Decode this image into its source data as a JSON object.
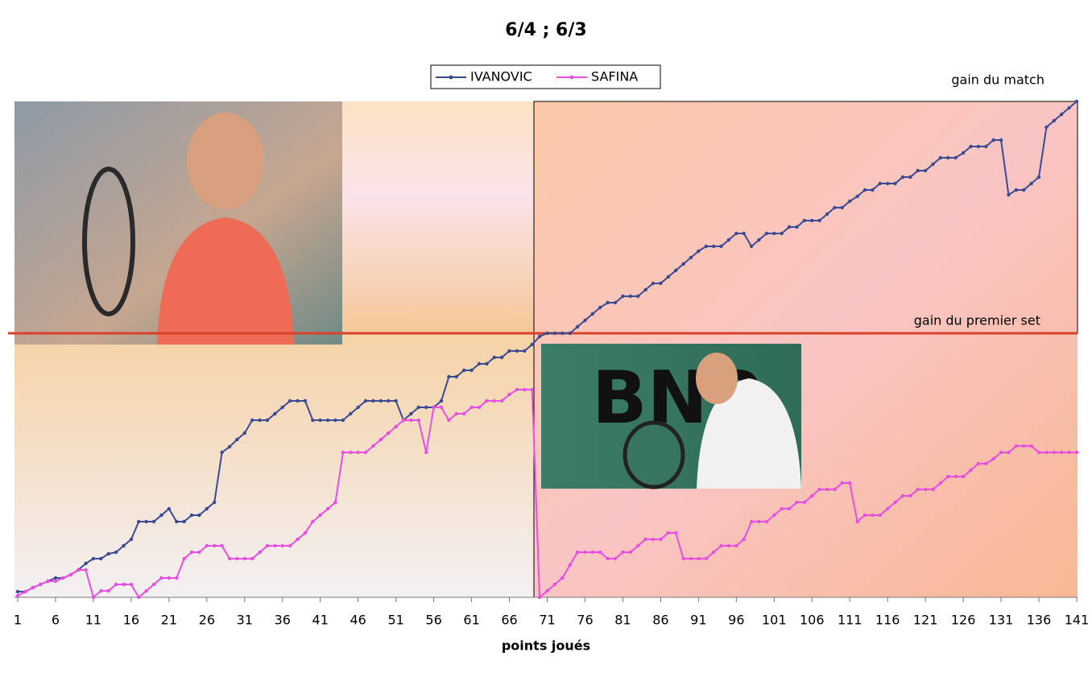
{
  "chart_data": {
    "type": "line",
    "title": "6/4 ; 6/3",
    "x_label": "points joués",
    "x": [
      1,
      2,
      3,
      4,
      5,
      6,
      7,
      8,
      9,
      10,
      11,
      12,
      13,
      14,
      15,
      16,
      17,
      18,
      19,
      20,
      21,
      22,
      23,
      24,
      25,
      26,
      27,
      28,
      29,
      30,
      31,
      32,
      33,
      34,
      35,
      36,
      37,
      38,
      39,
      40,
      41,
      42,
      43,
      44,
      45,
      46,
      47,
      48,
      49,
      50,
      51,
      52,
      53,
      54,
      55,
      56,
      57,
      58,
      59,
      60,
      61,
      62,
      63,
      64,
      65,
      66,
      67,
      68,
      69,
      70,
      71,
      72,
      73,
      74,
      75,
      76,
      77,
      78,
      79,
      80,
      81,
      82,
      83,
      84,
      85,
      86,
      87,
      88,
      89,
      90,
      91,
      92,
      93,
      94,
      95,
      96,
      97,
      98,
      99,
      100,
      101,
      102,
      103,
      104,
      105,
      106,
      107,
      108,
      109,
      110,
      111,
      112,
      113,
      114,
      115,
      116,
      117,
      118,
      119,
      120,
      121,
      122,
      123,
      124,
      125,
      126,
      127,
      128,
      129,
      130,
      131,
      132,
      133,
      134,
      135,
      136,
      137,
      138,
      139,
      140,
      141
    ],
    "xlim": [
      1,
      141
    ],
    "xticks": [
      1,
      6,
      11,
      16,
      21,
      26,
      31,
      36,
      41,
      46,
      51,
      56,
      61,
      66,
      71,
      76,
      81,
      86,
      91,
      96,
      101,
      106,
      111,
      116,
      121,
      126,
      131,
      136,
      141
    ],
    "ylim": [
      0,
      616
    ],
    "series": [
      {
        "name": "IVANOVIC",
        "color": "#3b4a93",
        "values": [
          7,
          7,
          12,
          16,
          20,
          24,
          24,
          28,
          34,
          42,
          48,
          48,
          54,
          56,
          64,
          72,
          94,
          94,
          94,
          102,
          110,
          94,
          94,
          102,
          102,
          110,
          118,
          180,
          187,
          196,
          204,
          220,
          220,
          220,
          228,
          236,
          244,
          244,
          244,
          220,
          220,
          220,
          220,
          220,
          228,
          236,
          244,
          244,
          244,
          244,
          244,
          220,
          228,
          236,
          236,
          236,
          244,
          274,
          274,
          282,
          282,
          290,
          290,
          298,
          298,
          306,
          306,
          306,
          314,
          324,
          328,
          328,
          328,
          328,
          336,
          344,
          352,
          360,
          366,
          366,
          374,
          374,
          374,
          382,
          390,
          390,
          398,
          406,
          414,
          422,
          430,
          436,
          436,
          436,
          444,
          452,
          452,
          436,
          444,
          452,
          452,
          452,
          460,
          460,
          468,
          468,
          468,
          476,
          484,
          484,
          492,
          498,
          506,
          506,
          514,
          514,
          514,
          522,
          522,
          530,
          530,
          538,
          546,
          546,
          546,
          552,
          560,
          560,
          560,
          568,
          568,
          500,
          506,
          506,
          514,
          522,
          584,
          592,
          600,
          608,
          616
        ]
      },
      {
        "name": "SAFINA",
        "color": "#e84fe0",
        "values": [
          2,
          7,
          12,
          16,
          20,
          20,
          24,
          28,
          34,
          34,
          0,
          8,
          8,
          16,
          16,
          16,
          0,
          8,
          16,
          24,
          24,
          24,
          48,
          56,
          56,
          64,
          64,
          64,
          48,
          48,
          48,
          48,
          56,
          64,
          64,
          64,
          64,
          72,
          80,
          94,
          102,
          110,
          118,
          180,
          180,
          180,
          180,
          188,
          196,
          204,
          212,
          220,
          220,
          220,
          180,
          236,
          236,
          220,
          228,
          228,
          236,
          236,
          244,
          244,
          244,
          252,
          258,
          258,
          258,
          0,
          8,
          16,
          24,
          40,
          56,
          56,
          56,
          56,
          48,
          48,
          56,
          56,
          64,
          72,
          72,
          72,
          80,
          80,
          48,
          48,
          48,
          48,
          56,
          64,
          64,
          64,
          72,
          94,
          94,
          94,
          102,
          110,
          110,
          118,
          118,
          126,
          134,
          134,
          134,
          142,
          142,
          94,
          102,
          102,
          102,
          110,
          118,
          126,
          126,
          134,
          134,
          134,
          142,
          150,
          150,
          150,
          158,
          166,
          166,
          172,
          180,
          180,
          188,
          188,
          188,
          180,
          180,
          180,
          180,
          180,
          180
        ]
      }
    ],
    "reference_lines": [
      {
        "label": "gain du premier set",
        "value": 328,
        "color": "#d9412b"
      }
    ],
    "annotations": [
      {
        "label": "gain du match",
        "value": 616
      }
    ]
  }
}
